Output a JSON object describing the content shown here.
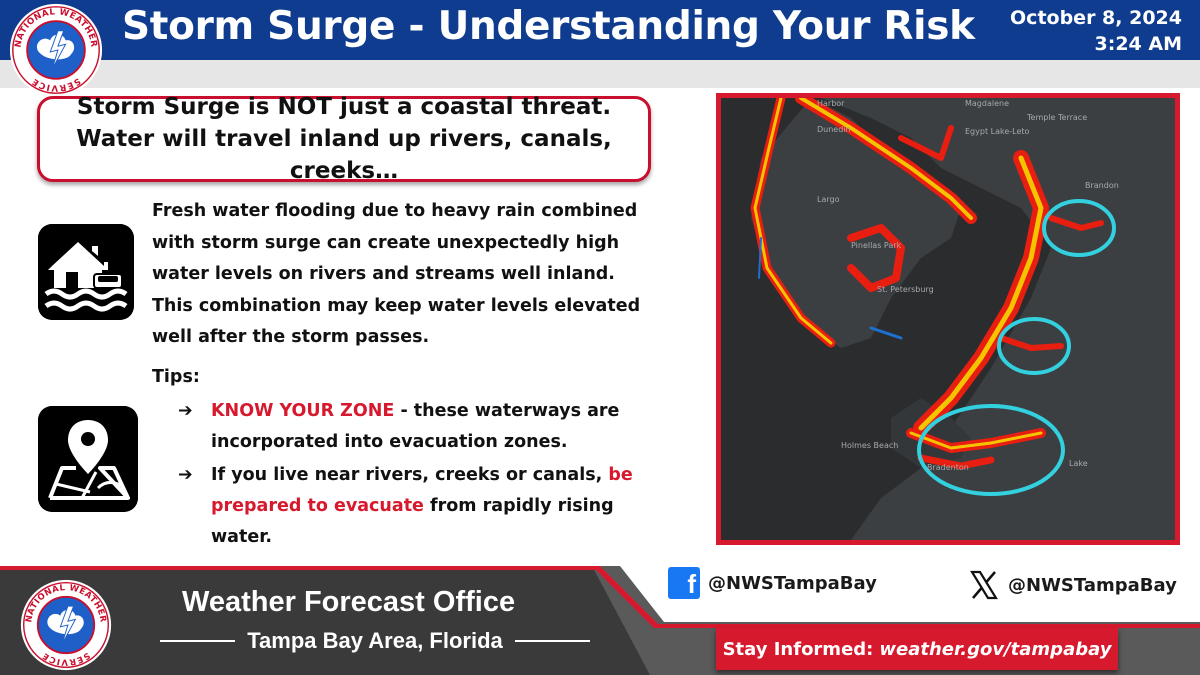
{
  "header": {
    "title": "Storm Surge - Understanding Your Risk",
    "date": "October 8, 2024",
    "time": "3:24 AM"
  },
  "logo": {
    "text": "NATIONAL WEATHER SERVICE"
  },
  "callout": {
    "text": "Storm Surge is NOT just a coastal threat. Water will travel inland up rivers, canals, creeks…"
  },
  "body": {
    "paragraph": "Fresh water flooding due to heavy rain combined with storm surge can create unexpectedly high water levels on rivers and streams well inland. This combination may keep water levels elevated well after the storm passes.",
    "tips_label": "Tips:",
    "tips": [
      {
        "arrow": "➔",
        "highlight": "KNOW YOUR ZONE",
        "rest": " - these waterways are incorporated into evacuation zones."
      },
      {
        "arrow": "➔",
        "before": "If you live near rivers, creeks or canals, ",
        "highlight": "be prepared to evacuate",
        "after": " from rapidly rising water."
      }
    ]
  },
  "icons": [
    "flooded-house-car-icon",
    "map-pin-icon"
  ],
  "map": {
    "labels": [
      "Harbor",
      "Magdalene",
      "Temple Terrace",
      "Dunedin",
      "Egypt Lake-Leto",
      "Largo",
      "Pinellas Park",
      "St. Petersburg",
      "Brandon",
      "Bradenton",
      "Holmes Beach",
      "Lake"
    ],
    "highlight_color": "#33d1e0"
  },
  "footer": {
    "office_title": "Weather Forecast Office",
    "office_subtitle": "Tampa Bay Area, Florida",
    "facebook_handle": "@NWSTampaBay",
    "x_handle": "@NWSTampaBay",
    "stay_informed_label": "Stay Informed:",
    "stay_informed_url": "weather.gov/tampabay"
  },
  "colors": {
    "header_blue": "#0f3c8f",
    "accent_red": "#d7192d",
    "footer_gray": "#5a5a5a"
  }
}
